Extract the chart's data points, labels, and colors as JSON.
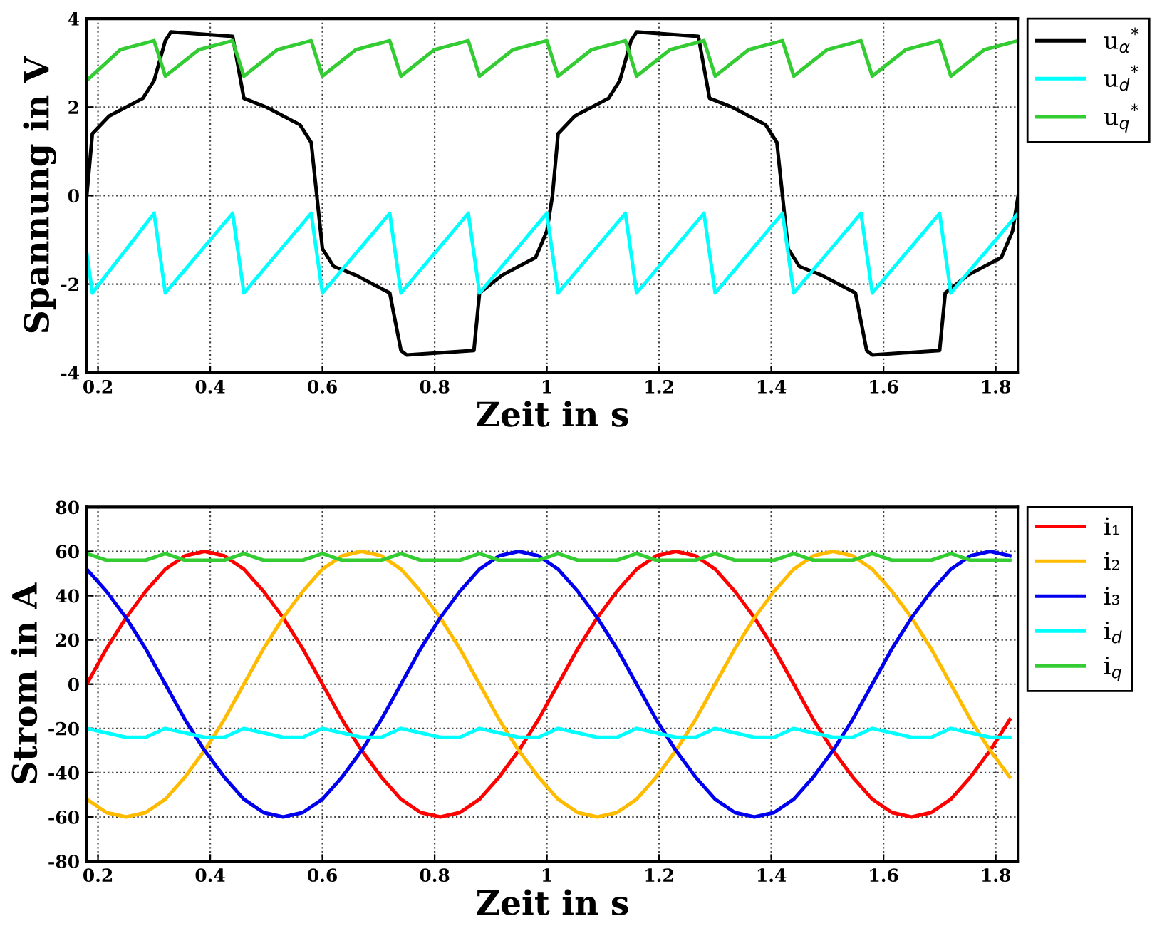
{
  "chart_data": [
    {
      "type": "line",
      "xlabel": "Zeit in s",
      "ylabel": "Spannung in V",
      "xlim": [
        0.18,
        1.84
      ],
      "xticks": [
        0.2,
        0.4,
        0.6,
        0.8,
        1,
        1.2,
        1.4,
        1.6,
        1.8
      ],
      "ylim": [
        -4,
        4
      ],
      "yticks": [
        -4,
        -2,
        0,
        2,
        4
      ],
      "grid": true,
      "legend": "top right",
      "line_style": "solid",
      "series": [
        {
          "name": "u$_{α}$$^{*}$",
          "color": "#000000",
          "x": [
            0.18,
            0.19,
            0.22,
            0.28,
            0.3,
            0.32,
            0.33,
            0.44,
            0.46,
            0.5,
            0.56,
            0.58,
            0.59,
            0.6,
            0.62,
            0.66,
            0.72,
            0.74,
            0.75,
            0.87,
            0.88,
            0.92,
            0.98,
            1.0,
            1.01,
            1.02,
            1.05,
            1.11,
            1.13,
            1.15,
            1.16,
            1.27,
            1.29,
            1.33,
            1.39,
            1.41,
            1.42,
            1.43,
            1.45,
            1.49,
            1.55,
            1.57,
            1.58,
            1.7,
            1.71,
            1.75,
            1.81,
            1.83,
            1.84
          ],
          "values": [
            0,
            1.4,
            1.8,
            2.2,
            2.6,
            3.5,
            3.7,
            3.6,
            2.2,
            2.0,
            1.6,
            1.2,
            0,
            -1.2,
            -1.6,
            -1.8,
            -2.2,
            -3.5,
            -3.6,
            -3.5,
            -2.2,
            -1.8,
            -1.4,
            -0.8,
            0,
            1.4,
            1.8,
            2.2,
            2.6,
            3.5,
            3.7,
            3.6,
            2.2,
            2.0,
            1.6,
            1.2,
            0,
            -1.2,
            -1.6,
            -1.8,
            -2.2,
            -3.5,
            -3.6,
            -3.5,
            -2.2,
            -1.8,
            -1.4,
            -0.8,
            0
          ]
        },
        {
          "name": "u$_{d}$$^{*}$",
          "color": "#00ffff",
          "x": [
            0.18,
            0.19,
            0.3,
            0.32,
            0.44,
            0.46,
            0.58,
            0.6,
            0.72,
            0.74,
            0.86,
            0.88,
            1.0,
            1.02,
            1.14,
            1.16,
            1.28,
            1.3,
            1.42,
            1.44,
            1.56,
            1.58,
            1.7,
            1.72,
            1.84
          ],
          "values": [
            -1.3,
            -2.2,
            -0.4,
            -2.2,
            -0.4,
            -2.2,
            -0.4,
            -2.2,
            -0.4,
            -2.2,
            -0.4,
            -2.2,
            -0.4,
            -2.2,
            -0.4,
            -2.2,
            -0.4,
            -2.2,
            -0.4,
            -2.2,
            -0.4,
            -2.2,
            -0.4,
            -2.2,
            -0.4
          ]
        },
        {
          "name": "u$_{q}$$^{*}$",
          "color": "#33cc33",
          "x": [
            0.18,
            0.24,
            0.3,
            0.32,
            0.38,
            0.44,
            0.46,
            0.52,
            0.58,
            0.6,
            0.66,
            0.72,
            0.74,
            0.8,
            0.86,
            0.88,
            0.94,
            1.0,
            1.02,
            1.08,
            1.14,
            1.16,
            1.22,
            1.28,
            1.3,
            1.36,
            1.42,
            1.44,
            1.5,
            1.56,
            1.58,
            1.64,
            1.7,
            1.72,
            1.78,
            1.84
          ],
          "values": [
            2.6,
            3.3,
            3.5,
            2.7,
            3.3,
            3.5,
            2.7,
            3.3,
            3.5,
            2.7,
            3.3,
            3.5,
            2.7,
            3.3,
            3.5,
            2.7,
            3.3,
            3.5,
            2.7,
            3.3,
            3.5,
            2.7,
            3.3,
            3.5,
            2.7,
            3.3,
            3.5,
            2.7,
            3.3,
            3.5,
            2.7,
            3.3,
            3.5,
            2.7,
            3.3,
            3.5
          ]
        }
      ]
    },
    {
      "type": "line",
      "xlabel": "Zeit in s",
      "ylabel": "Strom in A",
      "xlim": [
        0.18,
        1.84
      ],
      "xticks": [
        0.2,
        0.4,
        0.6,
        0.8,
        1,
        1.2,
        1.4,
        1.6,
        1.8
      ],
      "ylim": [
        -80,
        80
      ],
      "yticks": [
        -80,
        -60,
        -40,
        -20,
        0,
        20,
        40,
        60,
        80
      ],
      "grid": true,
      "legend": "top right",
      "line_style": "solid",
      "x": [
        0.18,
        0.215,
        0.25,
        0.285,
        0.32,
        0.355,
        0.39,
        0.425,
        0.46,
        0.495,
        0.53,
        0.565,
        0.6,
        0.635,
        0.67,
        0.705,
        0.74,
        0.775,
        0.81,
        0.845,
        0.88,
        0.915,
        0.95,
        0.985,
        1.02,
        1.055,
        1.09,
        1.125,
        1.16,
        1.195,
        1.23,
        1.265,
        1.3,
        1.335,
        1.37,
        1.405,
        1.44,
        1.475,
        1.51,
        1.545,
        1.58,
        1.615,
        1.65,
        1.685,
        1.72,
        1.755,
        1.79,
        1.825
      ],
      "series": [
        {
          "name": "i₁",
          "color": "#ff0000",
          "values": [
            0,
            16,
            30,
            42,
            52,
            58,
            60,
            58,
            52,
            42,
            30,
            16,
            0,
            -16,
            -30,
            -42,
            -52,
            -58,
            -60,
            -58,
            -52,
            -42,
            -30,
            -16,
            0,
            16,
            30,
            42,
            52,
            58,
            60,
            58,
            52,
            42,
            30,
            16,
            0,
            -16,
            -30,
            -42,
            -52,
            -58,
            -60,
            -58,
            -52,
            -42,
            -30,
            -16
          ]
        },
        {
          "name": "i₂",
          "color": "#ffbb00",
          "values": [
            -52,
            -58,
            -60,
            -58,
            -52,
            -42,
            -30,
            -16,
            0,
            16,
            30,
            42,
            52,
            58,
            60,
            58,
            52,
            42,
            30,
            16,
            0,
            -16,
            -30,
            -42,
            -52,
            -58,
            -60,
            -58,
            -52,
            -42,
            -30,
            -16,
            0,
            16,
            30,
            42,
            52,
            58,
            60,
            58,
            52,
            42,
            30,
            16,
            0,
            -16,
            -30,
            -42
          ]
        },
        {
          "name": "i₃",
          "color": "#0000ee",
          "values": [
            52,
            42,
            30,
            16,
            0,
            -16,
            -30,
            -42,
            -52,
            -58,
            -60,
            -58,
            -52,
            -42,
            -30,
            -16,
            0,
            16,
            30,
            42,
            52,
            58,
            60,
            58,
            52,
            42,
            30,
            16,
            0,
            -16,
            -30,
            -42,
            -52,
            -58,
            -60,
            -58,
            -52,
            -42,
            -30,
            -16,
            0,
            16,
            30,
            42,
            52,
            58,
            60,
            58
          ]
        },
        {
          "name": "i$_{d}$",
          "color": "#00ffff",
          "values": [
            -20,
            -22,
            -24,
            -24,
            -20,
            -22,
            -24,
            -24,
            -20,
            -22,
            -24,
            -24,
            -20,
            -22,
            -24,
            -24,
            -20,
            -22,
            -24,
            -24,
            -20,
            -22,
            -24,
            -24,
            -20,
            -22,
            -24,
            -24,
            -20,
            -22,
            -24,
            -24,
            -20,
            -22,
            -24,
            -24,
            -20,
            -22,
            -24,
            -24,
            -20,
            -22,
            -24,
            -24,
            -20,
            -22,
            -24,
            -24
          ]
        },
        {
          "name": "i$_{q}$",
          "color": "#33cc33",
          "values": [
            59,
            56,
            56,
            56,
            59,
            56,
            56,
            56,
            59,
            56,
            56,
            56,
            59,
            56,
            56,
            56,
            59,
            56,
            56,
            56,
            59,
            56,
            56,
            56,
            59,
            56,
            56,
            56,
            59,
            56,
            56,
            56,
            59,
            56,
            56,
            56,
            59,
            56,
            56,
            56,
            59,
            56,
            56,
            56,
            59,
            56,
            56,
            56
          ]
        }
      ]
    }
  ]
}
